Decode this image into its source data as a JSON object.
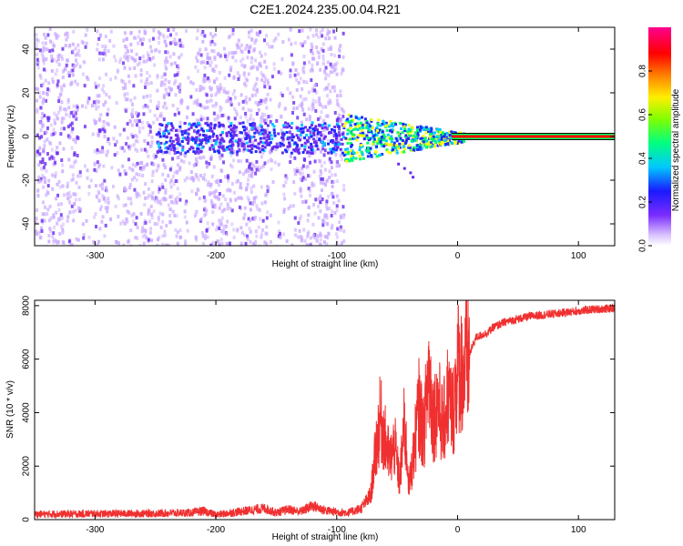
{
  "title": "C2E1.2024.235.00.04.R21",
  "colors": {
    "snr_line": "#f03030",
    "spectrogram_faint": "#c9a8ff",
    "spectrogram_mid": "#6a2cf0",
    "spectrogram_blue": "#1f2cff",
    "colorbar": [
      "#ffffff",
      "#d0b0ff",
      "#6a00ff",
      "#0000ff",
      "#00c8ff",
      "#00ff60",
      "#ffff00",
      "#ff8000",
      "#ff0000",
      "#ff00aa"
    ]
  },
  "chart_data": [
    {
      "type": "heatmap",
      "name": "spectrogram",
      "xlabel": "Height of straight line (km)",
      "ylabel": "Frequency (Hz)",
      "xlim": [
        -350,
        130
      ],
      "ylim": [
        -50,
        50
      ],
      "xticks": [
        -300,
        -200,
        -100,
        0,
        100
      ],
      "yticks": [
        -40,
        -20,
        0,
        20,
        40
      ],
      "xtick_labels": [
        "-300",
        "-200",
        "-100",
        "0",
        "100"
      ],
      "ytick_labels": [
        "-40",
        "-20",
        "0",
        "20",
        "40"
      ],
      "carrier_frequency_hz": 0,
      "noise_region_km": [
        -350,
        -95
      ],
      "signal_onset_km": -95,
      "clean_carrier_from_km": 0,
      "colorbar": {
        "label": "Normalized spectral amplitude",
        "range": [
          0,
          1
        ],
        "ticks": [
          0.0,
          0.2,
          0.4,
          0.6,
          0.8
        ],
        "tick_labels": [
          "0.0",
          "0.2",
          "0.4",
          "0.6",
          "0.8"
        ]
      }
    },
    {
      "type": "line",
      "name": "snr",
      "xlabel": "Height of straight line (km)",
      "ylabel": "SNR (10 * v/v)",
      "xlim": [
        -350,
        130
      ],
      "ylim": [
        0,
        8200
      ],
      "xticks": [
        -300,
        -200,
        -100,
        0,
        100
      ],
      "yticks": [
        0,
        2000,
        4000,
        6000,
        8000
      ],
      "xtick_labels": [
        "-300",
        "-200",
        "-100",
        "0",
        "100"
      ],
      "ytick_labels": [
        "0",
        "2000",
        "4000",
        "6000",
        "8000"
      ],
      "series": [
        {
          "x": [
            -350,
            -300,
            -250,
            -220,
            -210,
            -200,
            -180,
            -160,
            -150,
            -140,
            -130,
            -120,
            -110,
            -100,
            -90,
            -80,
            -72,
            -68,
            -64,
            -60,
            -56,
            -52,
            -48,
            -44,
            -40,
            -36,
            -32,
            -28,
            -24,
            -20,
            -16,
            -12,
            -8,
            -4,
            0,
            5,
            10,
            15,
            20,
            25,
            30,
            35,
            40,
            50,
            60,
            70,
            80,
            90,
            100,
            110,
            120,
            130
          ],
          "y": [
            200,
            220,
            230,
            260,
            320,
            180,
            300,
            420,
            260,
            380,
            300,
            520,
            350,
            280,
            260,
            420,
            900,
            2500,
            3800,
            3000,
            2200,
            2800,
            1400,
            3600,
            1200,
            2600,
            4200,
            3200,
            5600,
            3800,
            4400,
            3400,
            4700,
            3900,
            5800,
            5500,
            6200,
            6800,
            6900,
            7000,
            7200,
            7300,
            7400,
            7500,
            7600,
            7650,
            7700,
            7750,
            7800,
            7850,
            7880,
            7900
          ]
        }
      ]
    }
  ]
}
